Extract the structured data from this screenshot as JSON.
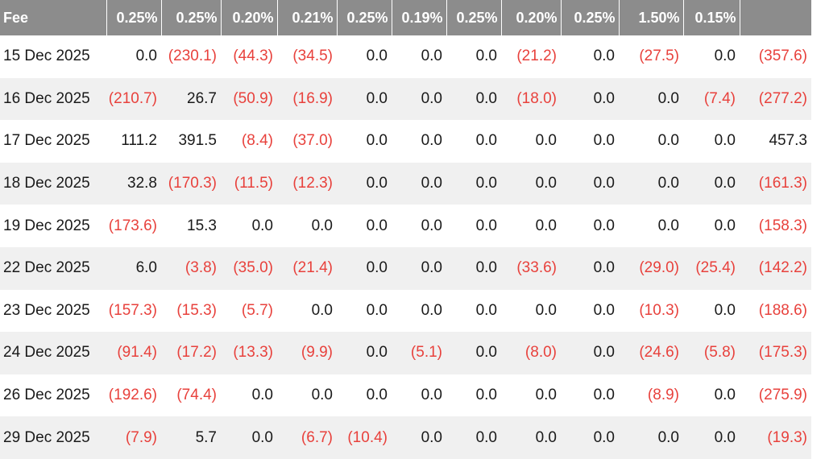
{
  "table": {
    "header_first": "Fee",
    "fees": [
      "0.25%",
      "0.25%",
      "0.20%",
      "0.21%",
      "0.25%",
      "0.19%",
      "0.25%",
      "0.20%",
      "0.25%",
      "1.50%",
      "0.15%",
      ""
    ],
    "rows": [
      {
        "date": "15 Dec 2025",
        "values": [
          "0.0",
          "(230.1)",
          "(44.3)",
          "(34.5)",
          "0.0",
          "0.0",
          "0.0",
          "(21.2)",
          "0.0",
          "(27.5)",
          "0.0",
          "(357.6)"
        ]
      },
      {
        "date": "16 Dec 2025",
        "values": [
          "(210.7)",
          "26.7",
          "(50.9)",
          "(16.9)",
          "0.0",
          "0.0",
          "0.0",
          "(18.0)",
          "0.0",
          "0.0",
          "(7.4)",
          "(277.2)"
        ]
      },
      {
        "date": "17 Dec 2025",
        "values": [
          "111.2",
          "391.5",
          "(8.4)",
          "(37.0)",
          "0.0",
          "0.0",
          "0.0",
          "0.0",
          "0.0",
          "0.0",
          "0.0",
          "457.3"
        ]
      },
      {
        "date": "18 Dec 2025",
        "values": [
          "32.8",
          "(170.3)",
          "(11.5)",
          "(12.3)",
          "0.0",
          "0.0",
          "0.0",
          "0.0",
          "0.0",
          "0.0",
          "0.0",
          "(161.3)"
        ]
      },
      {
        "date": "19 Dec 2025",
        "values": [
          "(173.6)",
          "15.3",
          "0.0",
          "0.0",
          "0.0",
          "0.0",
          "0.0",
          "0.0",
          "0.0",
          "0.0",
          "0.0",
          "(158.3)"
        ]
      },
      {
        "date": "22 Dec 2025",
        "values": [
          "6.0",
          "(3.8)",
          "(35.0)",
          "(21.4)",
          "0.0",
          "0.0",
          "0.0",
          "(33.6)",
          "0.0",
          "(29.0)",
          "(25.4)",
          "(142.2)"
        ]
      },
      {
        "date": "23 Dec 2025",
        "values": [
          "(157.3)",
          "(15.3)",
          "(5.7)",
          "0.0",
          "0.0",
          "0.0",
          "0.0",
          "0.0",
          "0.0",
          "(10.3)",
          "0.0",
          "(188.6)"
        ]
      },
      {
        "date": "24 Dec 2025",
        "values": [
          "(91.4)",
          "(17.2)",
          "(13.3)",
          "(9.9)",
          "0.0",
          "(5.1)",
          "0.0",
          "(8.0)",
          "0.0",
          "(24.6)",
          "(5.8)",
          "(175.3)"
        ]
      },
      {
        "date": "26 Dec 2025",
        "values": [
          "(192.6)",
          "(74.4)",
          "0.0",
          "0.0",
          "0.0",
          "0.0",
          "0.0",
          "0.0",
          "0.0",
          "(8.9)",
          "0.0",
          "(275.9)"
        ]
      },
      {
        "date": "29 Dec 2025",
        "values": [
          "(7.9)",
          "5.7",
          "0.0",
          "(6.7)",
          "(10.4)",
          "0.0",
          "0.0",
          "0.0",
          "0.0",
          "0.0",
          "0.0",
          "(19.3)"
        ]
      }
    ]
  },
  "colors": {
    "header_bg": "#8c8c8c",
    "header_text": "#ffffff",
    "negative": "#e8413c",
    "row_alt": "#f0f0f0",
    "text": "#1a1a1a"
  }
}
